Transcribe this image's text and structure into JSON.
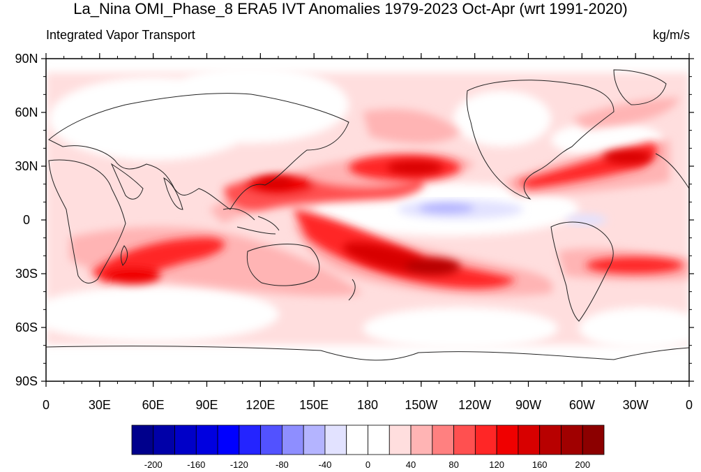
{
  "title": "La_Nina OMI_Phase_8 ERA5 IVT Anomalies 1979-2023 Oct-Apr (wrt 1991-2020)",
  "subtitle_left": "Integrated Vapor Transport",
  "subtitle_right": "kg/m/s",
  "lat_labels": [
    "90N",
    "60N",
    "30N",
    "0",
    "30S",
    "60S",
    "90S"
  ],
  "lon_labels": [
    "0",
    "30E",
    "60E",
    "90E",
    "120E",
    "150E",
    "180",
    "150W",
    "120W",
    "90W",
    "60W",
    "30W",
    "0"
  ],
  "colorbar": {
    "colors": [
      "#00008c",
      "#0000a8",
      "#0000c8",
      "#0000e0",
      "#0000ff",
      "#2424ff",
      "#5252ff",
      "#8e8eff",
      "#b4b4ff",
      "#e2e2ff",
      "#ffffff",
      "#ffffff",
      "#ffdede",
      "#ffb4b4",
      "#ff8080",
      "#ff5050",
      "#ff2626",
      "#f00000",
      "#d80000",
      "#b80000",
      "#a00000",
      "#8c0000"
    ],
    "labels": [
      "-200",
      "-160",
      "-120",
      "-80",
      "-40",
      "0",
      "40",
      "80",
      "120",
      "160",
      "200"
    ]
  },
  "chart_data": {
    "type": "heatmap",
    "title": "La_Nina OMI_Phase_8 ERA5 IVT Anomalies 1979-2023 Oct-Apr (wrt 1991-2020)",
    "variable": "Integrated Vapor Transport",
    "units": "kg/m/s",
    "contour_levels": [
      -200,
      -180,
      -160,
      -140,
      -120,
      -100,
      -80,
      -60,
      -40,
      -20,
      0,
      20,
      40,
      60,
      80,
      100,
      120,
      140,
      160,
      180,
      200
    ],
    "anomaly_regions": [
      {
        "center": [
          225,
          8
        ],
        "value": -30
      },
      {
        "center": [
          300,
          -3
        ],
        "value": -25
      },
      {
        "center": [
          265,
          -30
        ],
        "value": 150
      },
      {
        "center": [
          245,
          -25
        ],
        "value": 140
      },
      {
        "center": [
          215,
          -20
        ],
        "value": 120
      },
      {
        "center": [
          195,
          -10
        ],
        "value": 110
      },
      {
        "center": [
          130,
          18
        ],
        "value": 130
      },
      {
        "center": [
          175,
          27
        ],
        "value": 120
      },
      {
        "center": [
          320,
          30
        ],
        "value": 150
      },
      {
        "center": [
          75,
          -12
        ],
        "value": 110
      },
      {
        "center": [
          45,
          -28
        ],
        "value": 100
      }
    ]
  }
}
